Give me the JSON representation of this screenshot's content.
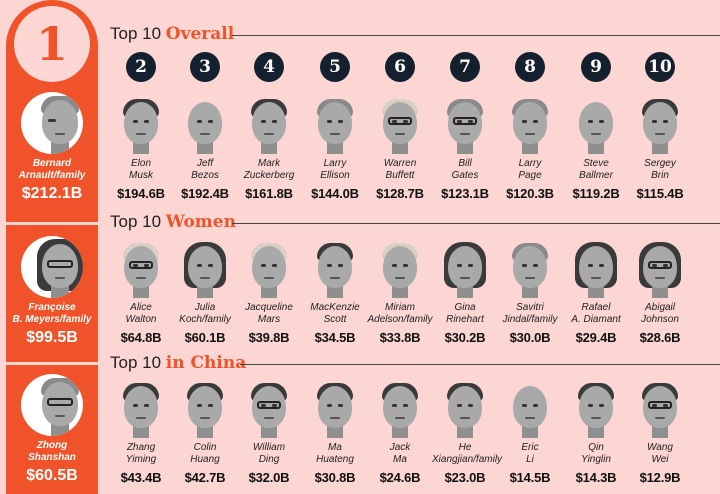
{
  "colors": {
    "accent": "#f0532a",
    "background": "#fbd6d2",
    "badge": "#15202e"
  },
  "leaders": [
    {
      "rank": "1",
      "name_line1": "Bernard",
      "name_line2": "Arnault/family",
      "net_worth": "$212.1B"
    },
    {
      "name_line1": "Françoise",
      "name_line2": "B. Meyers/family",
      "net_worth": "$99.5B"
    },
    {
      "name_line1": "Zhong",
      "name_line2": "Shanshan",
      "net_worth": "$60.5B"
    }
  ],
  "sections": [
    {
      "title_prefix": "Top 10 ",
      "title_accent": "Overall",
      "ranks": [
        "2",
        "3",
        "4",
        "5",
        "6",
        "7",
        "8",
        "9",
        "10"
      ],
      "people": [
        {
          "first": "Elon",
          "last": "Musk",
          "net_worth": "$194.6B"
        },
        {
          "first": "Jeff",
          "last": "Bezos",
          "net_worth": "$192.4B"
        },
        {
          "first": "Mark",
          "last": "Zuckerberg",
          "net_worth": "$161.8B"
        },
        {
          "first": "Larry",
          "last": "Ellison",
          "net_worth": "$144.0B"
        },
        {
          "first": "Warren",
          "last": "Buffett",
          "net_worth": "$128.7B"
        },
        {
          "first": "Bill",
          "last": "Gates",
          "net_worth": "$123.1B"
        },
        {
          "first": "Larry",
          "last": "Page",
          "net_worth": "$120.3B"
        },
        {
          "first": "Steve",
          "last": "Ballmer",
          "net_worth": "$119.2B"
        },
        {
          "first": "Sergey",
          "last": "Brin",
          "net_worth": "$115.4B"
        }
      ]
    },
    {
      "title_prefix": "Top 10 ",
      "title_accent": "Women",
      "people": [
        {
          "first": "Alice",
          "last": "Walton",
          "net_worth": "$64.8B"
        },
        {
          "first": "Julia",
          "last": "Koch/family",
          "net_worth": "$60.1B"
        },
        {
          "first": "Jacqueline",
          "last": "Mars",
          "net_worth": "$39.8B"
        },
        {
          "first": "MacKenzie",
          "last": "Scott",
          "net_worth": "$34.5B"
        },
        {
          "first": "Miriam",
          "last": "Adelson/family",
          "net_worth": "$33.8B"
        },
        {
          "first": "Gina",
          "last": "Rinehart",
          "net_worth": "$30.2B"
        },
        {
          "first": "Savitri",
          "last": "Jindal/family",
          "net_worth": "$30.0B"
        },
        {
          "first": "Rafael",
          "last": "A. Diamant",
          "net_worth": "$29.4B"
        },
        {
          "first": "Abigail",
          "last": "Johnson",
          "net_worth": "$28.6B"
        }
      ]
    },
    {
      "title_prefix": "Top 10 ",
      "title_accent": "in China",
      "people": [
        {
          "first": "Zhang",
          "last": "Yiming",
          "net_worth": "$43.4B"
        },
        {
          "first": "Colin",
          "last": "Huang",
          "net_worth": "$42.7B"
        },
        {
          "first": "William",
          "last": "Ding",
          "net_worth": "$32.0B"
        },
        {
          "first": "Ma",
          "last": "Huateng",
          "net_worth": "$30.8B"
        },
        {
          "first": "Jack",
          "last": "Ma",
          "net_worth": "$24.6B"
        },
        {
          "first": "He",
          "last": "Xiangjian/family",
          "net_worth": "$23.0B"
        },
        {
          "first": "Eric",
          "last": "Li",
          "net_worth": "$14.5B"
        },
        {
          "first": "Qin",
          "last": "Yinglin",
          "net_worth": "$14.3B"
        },
        {
          "first": "Wang",
          "last": "Wei",
          "net_worth": "$12.9B"
        }
      ]
    }
  ]
}
